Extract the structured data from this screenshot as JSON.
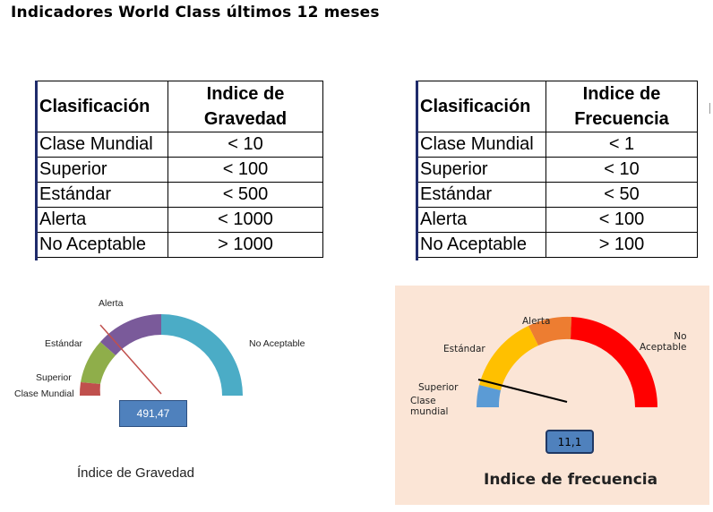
{
  "title": "Indicadores World Class últimos 12 meses",
  "table_gravedad": {
    "header_col1": "Clasificación",
    "header_col2_line1": "Indice de",
    "header_col2_line2": "Gravedad",
    "rows": [
      {
        "clase": "Clase Mundial",
        "valor": "< 10"
      },
      {
        "clase": "Superior",
        "valor": "< 100"
      },
      {
        "clase": "Estándar",
        "valor": "< 500"
      },
      {
        "clase": "Alerta",
        "valor": "< 1000"
      },
      {
        "clase": "No Aceptable",
        "valor": "> 1000"
      }
    ]
  },
  "table_frecuencia": {
    "header_col1": "Clasificación",
    "header_col2_line1": "Indice de",
    "header_col2_line2": "Frecuencia",
    "rows": [
      {
        "clase": "Clase Mundial",
        "valor": "< 1"
      },
      {
        "clase": "Superior",
        "valor": "< 10"
      },
      {
        "clase": "Estándar",
        "valor": "< 50"
      },
      {
        "clase": "Alerta",
        "valor": "< 100"
      },
      {
        "clase": "No Aceptable",
        "valor": "> 100"
      }
    ]
  },
  "gauge_gravedad": {
    "value_label": "491,47",
    "caption": "Índice de Gravedad",
    "labels": {
      "clase_mundial": "Clase Mundial",
      "superior": "Superior",
      "estandar": "Estándar",
      "alerta": "Alerta",
      "no_aceptable": "No Aceptable"
    },
    "colors": {
      "clase_mundial": "#c0504d",
      "superior": "#8fae4a",
      "estandar": "#7a5a9a",
      "no_aceptable": "#4bacc6",
      "needle": "#c0504d"
    }
  },
  "gauge_frecuencia": {
    "value_label": "11,1",
    "caption": "Indice de frecuencia",
    "labels": {
      "superior": "Superior",
      "clase_mundial_line1": "Clase",
      "clase_mundial_line2": "mundial",
      "estandar": "Estándar",
      "alerta": "Alerta",
      "no_aceptable_line1": "No",
      "no_aceptable_line2": "Aceptable"
    },
    "colors": {
      "superior": "#5b9bd5",
      "estandar": "#ffc000",
      "alerta": "#ed7d31",
      "no_aceptable": "#ff0000",
      "needle": "#000000",
      "panel_bg": "#fbe5d6"
    }
  }
}
